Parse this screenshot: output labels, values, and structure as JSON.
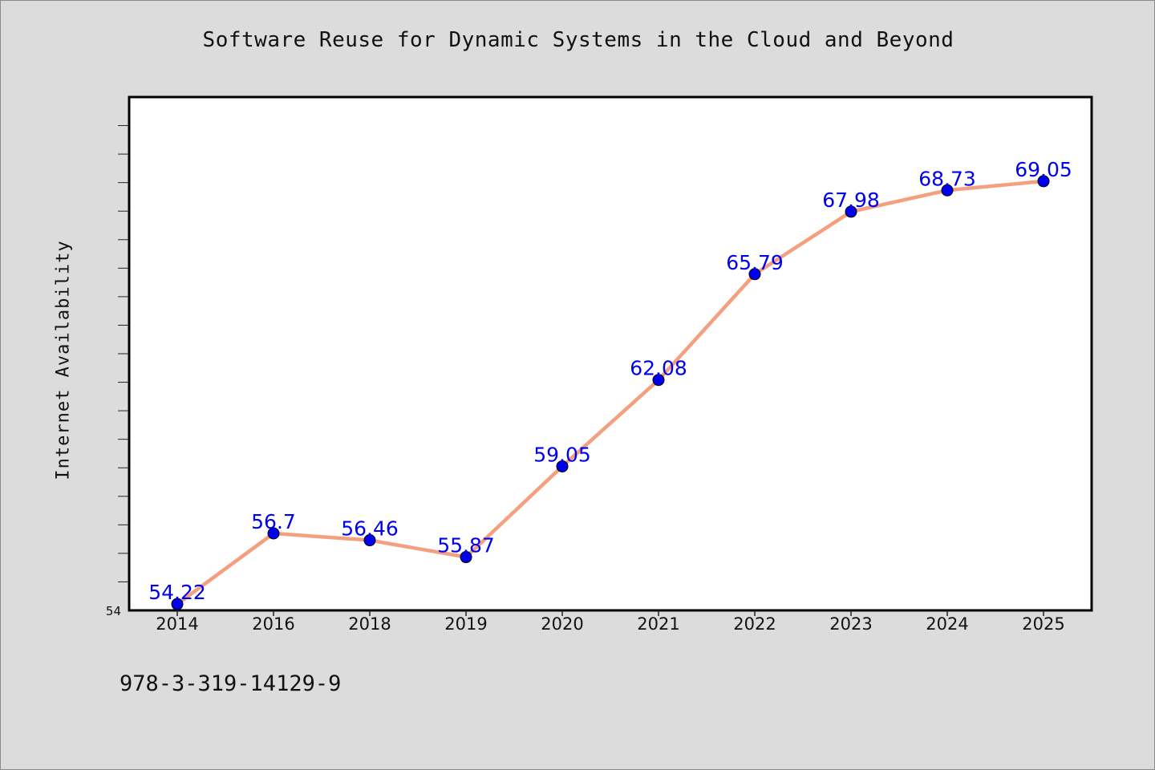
{
  "chart_data": {
    "type": "line",
    "title": "Software Reuse for Dynamic Systems in the Cloud and Beyond",
    "xlabel": "",
    "ylabel": "Internet Availability",
    "categories": [
      "2014",
      "2016",
      "2018",
      "2019",
      "2020",
      "2021",
      "2022",
      "2023",
      "2024",
      "2025"
    ],
    "series": [
      {
        "values": [
          54.22,
          56.7,
          56.46,
          55.87,
          59.05,
          62.08,
          65.79,
          67.98,
          68.73,
          69.05
        ]
      }
    ],
    "data_labels": [
      "54.22",
      "56.7",
      "56.46",
      "55.87",
      "59.05",
      "62.08",
      "65.79",
      "67.98",
      "68.73",
      "69.05"
    ],
    "ylim": [
      54,
      72
    ],
    "y_tick_labels": [
      "54"
    ],
    "grid": false,
    "colors": {
      "line": "#f4a07e",
      "marker": "#0000ee",
      "label": "#0000ee",
      "plot_background": "#ffffff",
      "page_background": "#dcdcdc"
    }
  },
  "footer": {
    "isbn": "978-3-319-14129-9"
  }
}
